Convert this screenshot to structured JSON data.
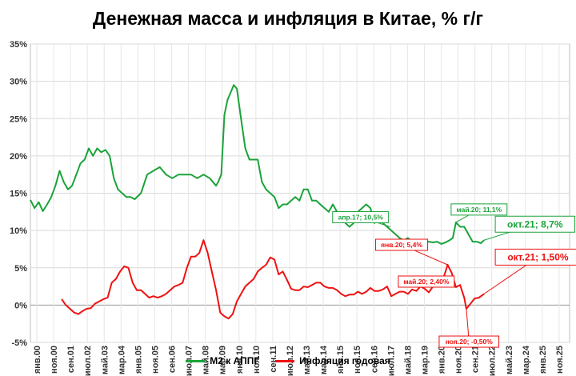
{
  "chart_data": {
    "type": "line",
    "title": "Денежная масса и инфляция в Китае, % г/г",
    "ylim": [
      -5,
      35
    ],
    "yticks": [
      "-5%",
      "0%",
      "5%",
      "10%",
      "15%",
      "20%",
      "25%",
      "30%",
      "35%"
    ],
    "xticks": [
      "янв.00",
      "ноя.00",
      "сен.01",
      "июл.02",
      "май.03",
      "мар.04",
      "янв.05",
      "ноя.05",
      "сен.06",
      "июл.07",
      "май.08",
      "мар.09",
      "янв.10",
      "ноя.10",
      "сен.11",
      "июл.12",
      "май.13",
      "мар.14",
      "янв.15",
      "ноя.15",
      "сен.16",
      "июл.17",
      "май.18",
      "мар.19",
      "янв.20",
      "ноя.20",
      "сен.21",
      "июл.22",
      "май.23",
      "мар.24",
      "янв.25",
      "ноя.25"
    ],
    "grid": true,
    "legend": "bottom",
    "colors": {
      "m2": "#1aa33a",
      "cpi": "#ee1111"
    },
    "series": [
      {
        "name": "М2 к АППГ",
        "x": [
          2000.0,
          2000.2,
          2000.4,
          2000.6,
          2000.8,
          2001.0,
          2001.2,
          2001.4,
          2001.6,
          2001.8,
          2002.0,
          2002.2,
          2002.4,
          2002.6,
          2002.8,
          2003.0,
          2003.2,
          2003.4,
          2003.6,
          2003.8,
          2004.0,
          2004.2,
          2004.4,
          2004.6,
          2004.8,
          2005.0,
          2005.3,
          2005.6,
          2005.9,
          2006.2,
          2006.5,
          2006.8,
          2007.1,
          2007.4,
          2007.7,
          2008.0,
          2008.3,
          2008.6,
          2008.9,
          2009.0,
          2009.15,
          2009.3,
          2009.45,
          2009.6,
          2009.75,
          2009.9,
          2010.1,
          2010.3,
          2010.5,
          2010.7,
          2010.9,
          2011.1,
          2011.3,
          2011.5,
          2011.7,
          2011.9,
          2012.1,
          2012.3,
          2012.5,
          2012.7,
          2012.9,
          2013.1,
          2013.3,
          2013.5,
          2013.7,
          2013.9,
          2014.1,
          2014.3,
          2014.5,
          2014.7,
          2014.9,
          2015.1,
          2015.3,
          2015.5,
          2015.7,
          2015.9,
          2016.1,
          2016.3,
          2016.5,
          2016.7,
          2016.9,
          2017.1,
          2017.3,
          2017.5,
          2017.7,
          2017.9,
          2018.1,
          2018.3,
          2018.5,
          2018.7,
          2018.9,
          2019.1,
          2019.3,
          2019.5,
          2019.7,
          2019.9,
          2020.1,
          2020.25,
          2020.4,
          2020.6,
          2020.8,
          2021.0,
          2021.2,
          2021.4,
          2021.6,
          2021.75
        ],
        "values": [
          14.1,
          13.0,
          13.8,
          12.6,
          13.5,
          14.5,
          16.0,
          18.0,
          16.5,
          15.5,
          16.0,
          17.5,
          19.0,
          19.5,
          21.0,
          20.0,
          21.0,
          20.5,
          20.8,
          20.0,
          17.0,
          15.5,
          15.0,
          14.5,
          14.5,
          14.2,
          15.0,
          17.5,
          18.0,
          18.5,
          17.5,
          17.0,
          17.5,
          17.5,
          17.5,
          17.0,
          17.5,
          17.0,
          16.0,
          16.5,
          17.5,
          25.5,
          27.5,
          28.5,
          29.5,
          29.0,
          25.0,
          21.0,
          19.5,
          19.5,
          19.5,
          16.5,
          15.5,
          15.0,
          14.5,
          13.0,
          13.5,
          13.5,
          14.0,
          14.5,
          14.0,
          15.5,
          15.5,
          14.0,
          14.0,
          13.5,
          13.0,
          12.5,
          13.5,
          12.5,
          12.0,
          11.0,
          10.5,
          11.0,
          12.5,
          13.0,
          13.5,
          13.0,
          11.0,
          11.5,
          11.0,
          10.5,
          10.0,
          9.5,
          9.0,
          8.7,
          9.0,
          8.5,
          8.5,
          8.5,
          8.3,
          8.5,
          8.4,
          8.5,
          8.2,
          8.4,
          8.7,
          9.0,
          11.1,
          10.5,
          10.5,
          9.5,
          8.5,
          8.5,
          8.3,
          8.7
        ]
      },
      {
        "name": "Инфляция годовая",
        "x": [
          2001.5,
          2001.7,
          2001.9,
          2002.1,
          2002.3,
          2002.5,
          2002.7,
          2002.9,
          2003.1,
          2003.3,
          2003.5,
          2003.7,
          2003.9,
          2004.1,
          2004.3,
          2004.5,
          2004.7,
          2004.9,
          2005.1,
          2005.3,
          2005.5,
          2005.7,
          2005.9,
          2006.1,
          2006.3,
          2006.5,
          2006.7,
          2006.9,
          2007.1,
          2007.3,
          2007.5,
          2007.7,
          2007.9,
          2008.1,
          2008.3,
          2008.5,
          2008.7,
          2008.9,
          2009.1,
          2009.3,
          2009.5,
          2009.7,
          2009.9,
          2010.1,
          2010.3,
          2010.5,
          2010.7,
          2010.9,
          2011.1,
          2011.3,
          2011.5,
          2011.7,
          2011.9,
          2012.1,
          2012.3,
          2012.5,
          2012.7,
          2012.9,
          2013.1,
          2013.3,
          2013.5,
          2013.7,
          2013.9,
          2014.1,
          2014.3,
          2014.5,
          2014.7,
          2014.9,
          2015.1,
          2015.3,
          2015.5,
          2015.7,
          2015.9,
          2016.1,
          2016.3,
          2016.5,
          2016.7,
          2016.9,
          2017.1,
          2017.3,
          2017.5,
          2017.7,
          2017.9,
          2018.1,
          2018.3,
          2018.5,
          2018.7,
          2018.9,
          2019.1,
          2019.3,
          2019.5,
          2019.7,
          2019.9,
          2020.0,
          2020.2,
          2020.4,
          2020.6,
          2020.8,
          2020.9,
          2021.1,
          2021.3,
          2021.5,
          2021.75
        ],
        "values": [
          0.8,
          0.0,
          -0.5,
          -1.0,
          -1.2,
          -0.8,
          -0.5,
          -0.4,
          0.2,
          0.5,
          0.8,
          1.0,
          3.0,
          3.5,
          4.5,
          5.2,
          5.0,
          3.0,
          2.0,
          2.0,
          1.5,
          1.0,
          1.2,
          1.0,
          1.2,
          1.5,
          2.0,
          2.5,
          2.7,
          3.0,
          5.0,
          6.5,
          6.5,
          7.0,
          8.7,
          7.0,
          4.5,
          2.0,
          -1.0,
          -1.5,
          -1.8,
          -1.2,
          0.5,
          1.5,
          2.5,
          3.0,
          3.5,
          4.5,
          5.0,
          5.4,
          6.4,
          6.1,
          4.1,
          4.5,
          3.4,
          2.2,
          2.0,
          2.0,
          2.5,
          2.4,
          2.7,
          3.0,
          3.0,
          2.5,
          2.3,
          2.3,
          2.0,
          1.5,
          1.2,
          1.4,
          1.4,
          1.8,
          1.5,
          1.8,
          2.3,
          1.9,
          1.9,
          2.1,
          2.5,
          1.2,
          1.5,
          1.8,
          1.8,
          1.5,
          2.1,
          1.9,
          2.5,
          2.2,
          1.7,
          2.5,
          2.7,
          2.8,
          4.5,
          5.4,
          4.3,
          2.4,
          2.7,
          1.0,
          -0.5,
          0.2,
          0.9,
          1.0,
          1.5
        ]
      }
    ],
    "annotations": [
      {
        "label": "апр.17; 10,5%",
        "series": 0,
        "x": 2017.25,
        "y": 10.5,
        "box": "small"
      },
      {
        "label": "май.20; 11,1%",
        "series": 0,
        "x": 2020.4,
        "y": 11.1,
        "box": "small"
      },
      {
        "label": "окт.21; 8,7%",
        "series": 0,
        "x": 2021.75,
        "y": 8.7,
        "box": "big"
      },
      {
        "label": "янв.20; 5,4%",
        "series": 1,
        "x": 2020.0,
        "y": 5.4,
        "box": "small"
      },
      {
        "label": "май.20; 2,40%",
        "series": 1,
        "x": 2020.4,
        "y": 2.4,
        "box": "small"
      },
      {
        "label": "ноя.20; -0,50%",
        "series": 1,
        "x": 2020.9,
        "y": -0.5,
        "box": "small"
      },
      {
        "label": "окт.21; 1,50%",
        "series": 1,
        "x": 2021.75,
        "y": 1.5,
        "box": "big"
      }
    ]
  }
}
